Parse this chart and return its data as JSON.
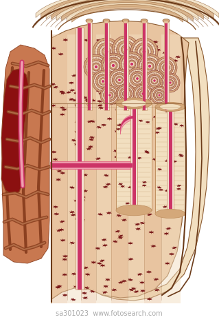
{
  "bg_color": "#ffffff",
  "bone_peach": "#e8c4a0",
  "bone_light": "#f2dfc0",
  "bone_med": "#d4a87a",
  "bone_dark": "#c08050",
  "bone_outer_arc": "#e0b888",
  "bone_rim": "#d4956a",
  "osteon_bg": "#e8c4a0",
  "osteon_ring": "#c09060",
  "osteon_line": "#8b3a3a",
  "canal_inner": "#f5e0d0",
  "vessel_pink": "#e06080",
  "vessel_bright": "#cc3366",
  "vessel_light": "#f0a0b0",
  "spongy_med": "#c87850",
  "spongy_dark": "#8b4020",
  "spongy_red": "#8b1010",
  "marrow_bg": "#d4956a",
  "cell_dark": "#7a1a1a",
  "outline": "#8b5a30",
  "outline_dark": "#6b3a18",
  "text_wm": "#aaaaaa",
  "watermark": "sa301023  www.fotosearch.com"
}
